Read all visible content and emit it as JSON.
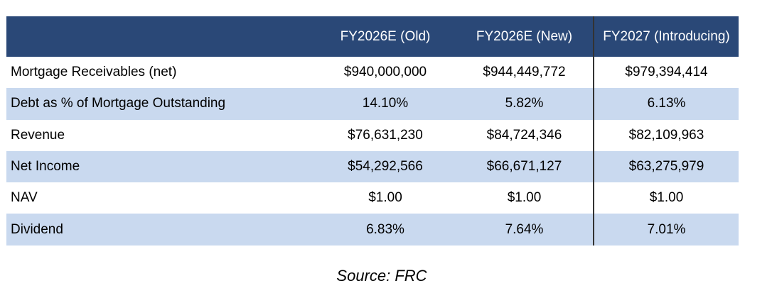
{
  "table": {
    "headers": [
      "",
      "FY2026E (Old)",
      "FY2026E (New)",
      "FY2027 (Introducing)"
    ],
    "rows": [
      [
        "Mortgage Receivables (net)",
        "$940,000,000",
        "$944,449,772",
        "$979,394,414"
      ],
      [
        "Debt as % of Mortgage Outstanding",
        "14.10%",
        "5.82%",
        "6.13%"
      ],
      [
        "Revenue",
        "$76,631,230",
        "$84,724,346",
        "$82,109,963"
      ],
      [
        "Net Income",
        "$54,292,566",
        "$66,671,127",
        "$63,275,979"
      ],
      [
        "NAV",
        "$1.00",
        "$1.00",
        "$1.00"
      ],
      [
        "Dividend",
        "6.83%",
        "7.64%",
        "7.01%"
      ]
    ]
  },
  "source": "Source: FRC",
  "colors": {
    "header_bg": "#2a4877",
    "band_bg": "#c9d9ef"
  }
}
